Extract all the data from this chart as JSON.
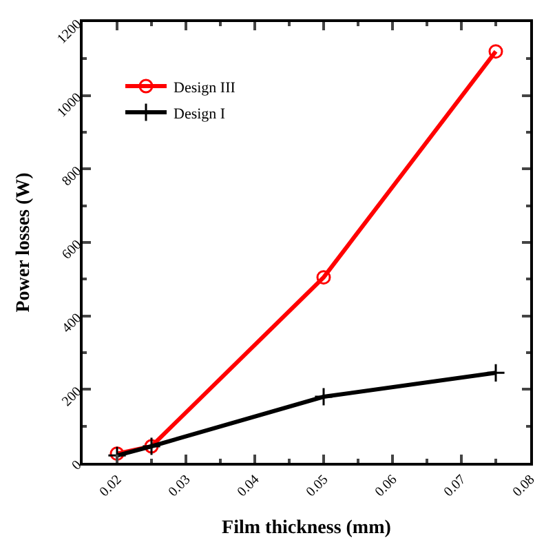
{
  "chart_data": {
    "type": "line",
    "xlabel": "Film thickness (mm)",
    "ylabel": "Power losses (W)",
    "x": [
      0.02,
      0.025,
      0.05,
      0.075
    ],
    "series": [
      {
        "name": "Design III",
        "color": "#ff0000",
        "values": [
          25,
          45,
          505,
          1120
        ],
        "marker": "circle"
      },
      {
        "name": "Design I",
        "color": "#000000",
        "values": [
          20,
          45,
          180,
          245
        ],
        "marker": "cross"
      }
    ],
    "xlim": [
      0.015,
      0.08
    ],
    "xticks": [
      {
        "value": 0.02,
        "label": "0.02"
      },
      {
        "value": 0.03,
        "label": "0.03"
      },
      {
        "value": 0.04,
        "label": "0.04"
      },
      {
        "value": 0.05,
        "label": "0.05"
      },
      {
        "value": 0.06,
        "label": "0.06"
      },
      {
        "value": 0.07,
        "label": "0.07"
      },
      {
        "value": 0.08,
        "label": "0.08"
      }
    ],
    "ylim": [
      0,
      1200
    ],
    "yticks": [
      0,
      200,
      400,
      600,
      800,
      1000,
      1200
    ],
    "legend": "top left",
    "line_style": "solid"
  }
}
